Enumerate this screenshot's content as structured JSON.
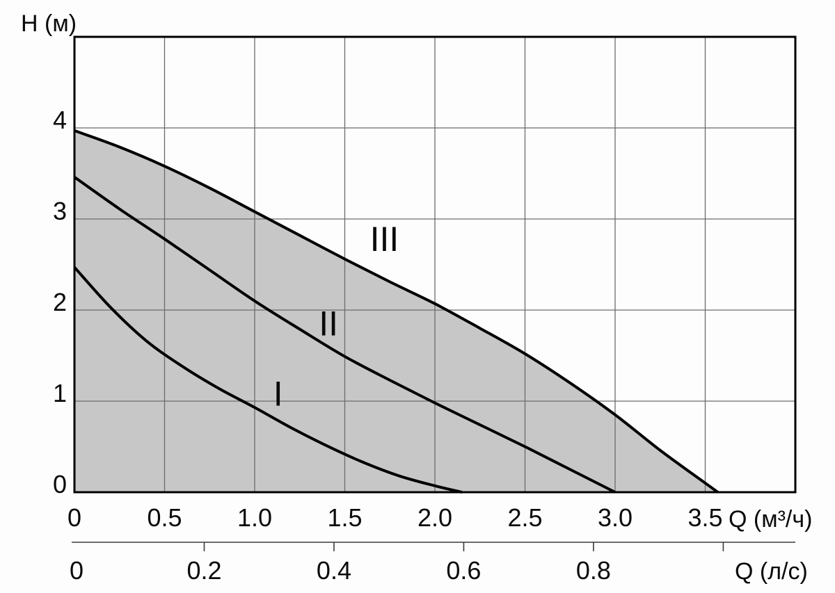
{
  "figure": {
    "y_axis_title": "H (м)",
    "x_axis_primary_title": "Q (м³/ч)",
    "x_axis_secondary_title": "Q (л/с)"
  },
  "chart_data": {
    "type": "line",
    "title": "",
    "description": "Pump head (H, м) versus flow rate (Q) performance curves for three speed settings I, II, III; grey area is the operating range under curve III",
    "grid": true,
    "line_color": "#000000",
    "grid_color": "#6b6b6b",
    "frame_color": "#000000",
    "y_axis": {
      "label": "H (м)",
      "range": [
        0,
        5
      ],
      "ticks": [
        {
          "value": 0,
          "label": "0"
        },
        {
          "value": 1,
          "label": "1"
        },
        {
          "value": 2,
          "label": "2"
        },
        {
          "value": 3,
          "label": "3"
        },
        {
          "value": 4,
          "label": "4"
        }
      ]
    },
    "x_axis_primary": {
      "label": "Q (м³/ч)",
      "range": [
        0,
        4
      ],
      "ticks": [
        {
          "value": 0,
          "label": "0"
        },
        {
          "value": 0.5,
          "label": "0.5"
        },
        {
          "value": 1.0,
          "label": "1.0"
        },
        {
          "value": 1.5,
          "label": "1.5"
        },
        {
          "value": 2.0,
          "label": "2.0"
        },
        {
          "value": 2.5,
          "label": "2.5"
        },
        {
          "value": 3.0,
          "label": "3.0"
        },
        {
          "value": 3.5,
          "label": "3.5"
        }
      ]
    },
    "x_axis_secondary": {
      "label": "Q (л/с)",
      "to_primary_factor": 3.6,
      "ticks": [
        {
          "value": 0,
          "label": "0",
          "mark": false
        },
        {
          "value": 0.2,
          "label": "0.2",
          "mark": true
        },
        {
          "value": 0.4,
          "label": "0.4",
          "mark": true
        },
        {
          "value": 0.6,
          "label": "0.6",
          "mark": true
        },
        {
          "value": 0.8,
          "label": "0.8",
          "mark": true
        },
        {
          "value": 1.0,
          "label": "",
          "mark": true
        }
      ]
    },
    "shaded_area": {
      "under_series": "III",
      "color": "#c7c7c7"
    },
    "series": [
      {
        "name": "I",
        "label_at": [
          1.13,
          1.08
        ],
        "points": [
          [
            0,
            2.47
          ],
          [
            0.2,
            2.03
          ],
          [
            0.4,
            1.66
          ],
          [
            0.6,
            1.38
          ],
          [
            0.8,
            1.14
          ],
          [
            1.0,
            0.93
          ],
          [
            1.2,
            0.71
          ],
          [
            1.4,
            0.51
          ],
          [
            1.6,
            0.33
          ],
          [
            1.8,
            0.18
          ],
          [
            2.0,
            0.07
          ],
          [
            2.15,
            0
          ]
        ]
      },
      {
        "name": "II",
        "label_at": [
          1.41,
          1.85
        ],
        "points": [
          [
            0,
            3.46
          ],
          [
            0.25,
            3.11
          ],
          [
            0.5,
            2.78
          ],
          [
            0.75,
            2.44
          ],
          [
            1.0,
            2.1
          ],
          [
            1.25,
            1.79
          ],
          [
            1.5,
            1.49
          ],
          [
            1.75,
            1.23
          ],
          [
            2.0,
            0.98
          ],
          [
            2.25,
            0.74
          ],
          [
            2.5,
            0.5
          ],
          [
            2.75,
            0.25
          ],
          [
            3.0,
            0
          ]
        ]
      },
      {
        "name": "III",
        "label_at": [
          1.72,
          2.78
        ],
        "points": [
          [
            0,
            3.97
          ],
          [
            0.25,
            3.79
          ],
          [
            0.5,
            3.58
          ],
          [
            0.75,
            3.34
          ],
          [
            1.0,
            3.08
          ],
          [
            1.25,
            2.82
          ],
          [
            1.5,
            2.56
          ],
          [
            1.75,
            2.31
          ],
          [
            2.0,
            2.07
          ],
          [
            2.25,
            1.8
          ],
          [
            2.5,
            1.52
          ],
          [
            2.75,
            1.2
          ],
          [
            3.0,
            0.85
          ],
          [
            3.25,
            0.46
          ],
          [
            3.5,
            0.1
          ],
          [
            3.57,
            0
          ]
        ]
      }
    ]
  }
}
